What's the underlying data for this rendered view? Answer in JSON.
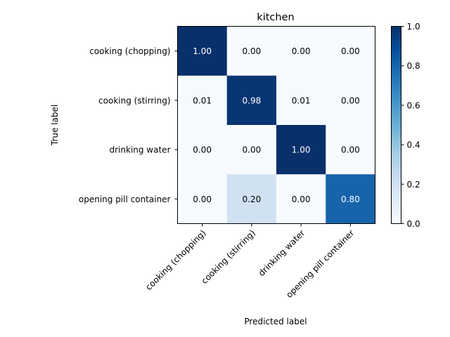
{
  "chart_data": {
    "type": "heatmap",
    "title": "kitchen",
    "xlabel": "Predicted label",
    "ylabel": "True label",
    "x_categories": [
      "cooking (chopping)",
      "cooking (stirring)",
      "drinking water",
      "opening pill container"
    ],
    "y_categories": [
      "cooking (chopping)",
      "cooking (stirring)",
      "drinking water",
      "opening pill container"
    ],
    "values": [
      [
        1.0,
        0.0,
        0.0,
        0.0
      ],
      [
        0.01,
        0.98,
        0.01,
        0.0
      ],
      [
        0.0,
        0.0,
        1.0,
        0.0
      ],
      [
        0.0,
        0.2,
        0.0,
        0.8
      ]
    ],
    "cell_labels": [
      [
        "1.00",
        "0.00",
        "0.00",
        "0.00"
      ],
      [
        "0.01",
        "0.98",
        "0.01",
        "0.00"
      ],
      [
        "0.00",
        "0.00",
        "1.00",
        "0.00"
      ],
      [
        "0.00",
        "0.20",
        "0.00",
        "0.80"
      ]
    ],
    "colorbar": {
      "range": [
        0,
        1
      ],
      "ticks": [
        "0.0",
        "0.2",
        "0.4",
        "0.6",
        "0.8",
        "1.0"
      ],
      "colormap": "Blues"
    },
    "text_colors": {
      "dark": "#000000",
      "light": "#ffffff"
    }
  }
}
